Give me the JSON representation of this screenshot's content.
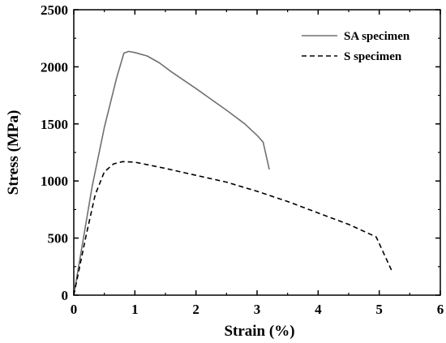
{
  "chart_data": {
    "type": "line",
    "xlabel": "Strain (%)",
    "ylabel": "Stress (MPa)",
    "xlim": [
      0,
      6
    ],
    "ylim": [
      0,
      2500
    ],
    "x_ticks": [
      0,
      1,
      2,
      3,
      4,
      5,
      6
    ],
    "y_ticks": [
      0,
      500,
      1000,
      1500,
      2000,
      2500
    ],
    "grid": false,
    "legend_position": "top-right",
    "series": [
      {
        "name": "SA specimen",
        "color": "#707070",
        "line_style": "solid",
        "points": [
          [
            0,
            0
          ],
          [
            0.3,
            950
          ],
          [
            0.5,
            1470
          ],
          [
            0.7,
            1900
          ],
          [
            0.82,
            2120
          ],
          [
            0.9,
            2135
          ],
          [
            1.0,
            2125
          ],
          [
            1.2,
            2095
          ],
          [
            1.4,
            2035
          ],
          [
            1.6,
            1955
          ],
          [
            2.0,
            1810
          ],
          [
            2.5,
            1620
          ],
          [
            2.8,
            1500
          ],
          [
            3.0,
            1400
          ],
          [
            3.1,
            1340
          ],
          [
            3.2,
            1100
          ]
        ]
      },
      {
        "name": "S specimen",
        "color": "#000000",
        "line_style": "dashed",
        "points": [
          [
            0,
            0
          ],
          [
            0.2,
            520
          ],
          [
            0.35,
            880
          ],
          [
            0.5,
            1080
          ],
          [
            0.65,
            1150
          ],
          [
            0.8,
            1170
          ],
          [
            1.0,
            1165
          ],
          [
            1.5,
            1110
          ],
          [
            2.0,
            1050
          ],
          [
            2.5,
            990
          ],
          [
            3.0,
            910
          ],
          [
            3.5,
            820
          ],
          [
            4.0,
            720
          ],
          [
            4.5,
            620
          ],
          [
            4.95,
            510
          ],
          [
            5.2,
            220
          ]
        ]
      }
    ]
  }
}
